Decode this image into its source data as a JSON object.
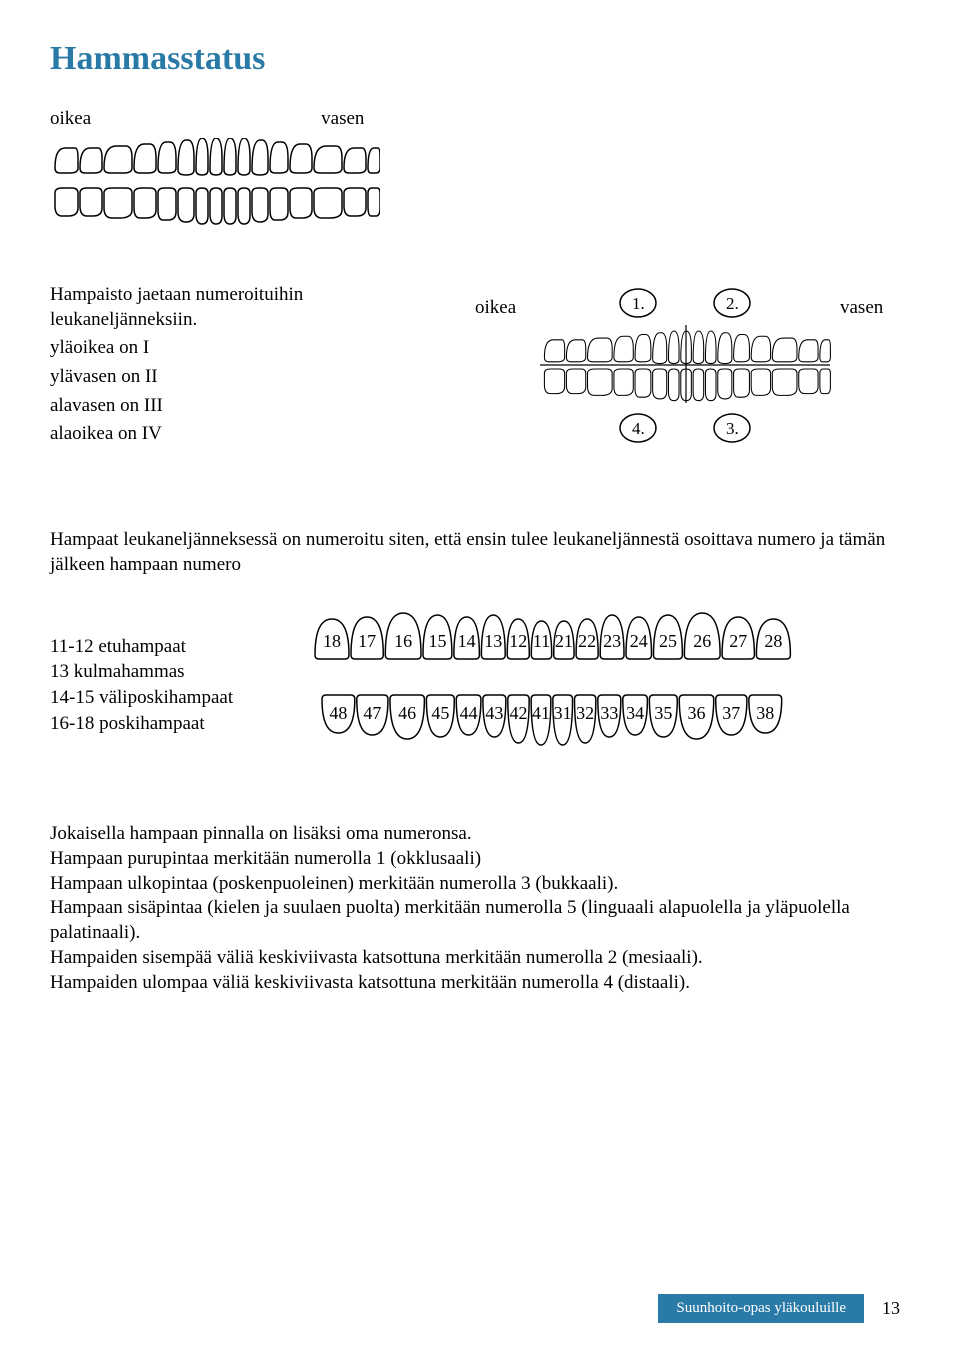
{
  "title": "Hammasstatus",
  "labels": {
    "oikea": "oikea",
    "vasen": "vasen"
  },
  "intro": {
    "line1": "Hampaisto jaetaan numeroituihin leukaneljänneksiin.",
    "l2": "yläoikea on I",
    "l3": "ylävasen on II",
    "l4": "alavasen on III",
    "l5": "alaoikea on IV"
  },
  "quadrants": {
    "q1": "1.",
    "q2": "2.",
    "q3": "3.",
    "q4": "4."
  },
  "section3": "Hampaat leukaneljänneksessä on numeroitu siten, että ensin tulee leukaneljännestä osoittava numero ja tämän jälkeen hampaan numero",
  "legend": {
    "l1": "11-12 etuhampaat",
    "l2": "13 kulmahammas",
    "l3": "14-15 väliposkihampaat",
    "l4": "16-18 poskihampaat"
  },
  "teeth_upper": [
    "18",
    "17",
    "16",
    "15",
    "14",
    "13",
    "12",
    "11",
    "21",
    "22",
    "23",
    "24",
    "25",
    "26",
    "27",
    "28"
  ],
  "teeth_lower": [
    "48",
    "47",
    "46",
    "45",
    "44",
    "43",
    "42",
    "41",
    "31",
    "32",
    "33",
    "34",
    "35",
    "36",
    "37",
    "38"
  ],
  "section5": {
    "p1": "Jokaisella hampaan pinnalla on lisäksi oma numeronsa.",
    "p2": "Hampaan purupintaa merkitään numerolla 1 (okklusaali)",
    "p3": "Hampaan ulkopintaa (poskenpuoleinen) merkitään numerolla 3 (bukkaali).",
    "p4": "Hampaan sisäpintaa (kielen ja suulaen puolta) merkitään numerolla 5 (linguaali alapuolella ja yläpuolella palatinaali).",
    "p5": "Hampaiden sisempää väliä keskiviivasta katsottuna merkitään numerolla 2 (mesiaali).",
    "p6": "Hampaiden ulompaa väliä keskiviivasta katsottuna merkitään numerolla 4 (distaali)."
  },
  "footer": {
    "text": "Suunhoito-opas yläkouluille",
    "page": "13"
  },
  "colors": {
    "accent": "#2a7aa8",
    "stroke": "#000000",
    "bg": "#ffffff"
  }
}
